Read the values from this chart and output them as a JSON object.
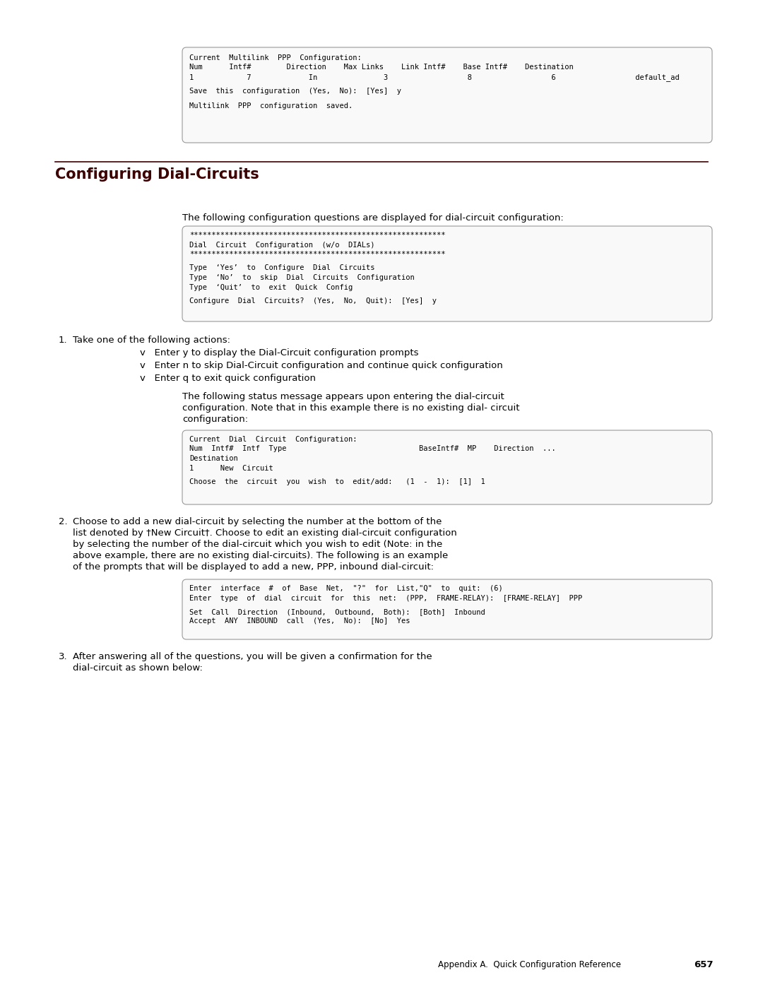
{
  "bg_color": "#ffffff",
  "text_color": "#000000",
  "title": "Configuring Dial-Circuits",
  "title_color": "#3d0000",
  "separator_color": "#3d0000",
  "footer_text": "Appendix A.  Quick Configuration Reference",
  "footer_page": "657",
  "box1_lines": [
    "Current  Multilink  PPP  Configuration:",
    "Num      Intf#        Direction    Max Links    Link Intf#    Base Intf#    Destination",
    "1            7             In               3                  8                  6                  default_ad",
    "",
    "Save  this  configuration  (Yes,  No):  [Yes]  y",
    "",
    "Multilink  PPP  configuration  saved."
  ],
  "intro_text": "The following configuration questions are displayed for dial-circuit configuration:",
  "box2_lines": [
    "**********************************************************",
    "Dial  Circuit  Configuration  (w/o  DIALs)",
    "**********************************************************",
    "",
    "Type  ‘Yes’  to  Configure  Dial  Circuits",
    "Type  ‘No’  to  skip  Dial  Circuits  Configuration",
    "Type  ‘Quit’  to  exit  Quick  Config",
    "",
    "Configure  Dial  Circuits?  (Yes,  No,  Quit):  [Yes]  y"
  ],
  "step1_label": "1.",
  "step1_header": "Take one of the following actions:",
  "step1_bullets": [
    "v   Enter y to display the Dial-Circuit configuration prompts",
    "v   Enter n to skip Dial-Circuit configuration and continue quick configuration",
    "v   Enter q to exit quick configuration"
  ],
  "step1_para": "The following status message appears upon entering the dial-circuit\nconfiguration. Note that in this example there is no existing dial- circuit\nconfiguration:",
  "box3_lines": [
    "Current  Dial  Circuit  Configuration:",
    "Num  Intf#  Intf  Type                              BaseIntf#  MP    Direction  ...",
    "Destination",
    "1      New  Circuit",
    "",
    "Choose  the  circuit  you  wish  to  edit/add:   (1  -  1):  [1]  1"
  ],
  "step2_label": "2.",
  "step2_line1": "Choose to add a new dial-circuit by selecting the number at the bottom of the",
  "step2_text": "list denoted by †New Circuit†. Choose to edit an existing dial-circuit configuration\nby selecting the number of the dial-circuit which you wish to edit (Note: in the\nabove example, there are no existing dial-circuits). The following is an example\nof the prompts that will be displayed to add a new, PPP, inbound dial-circuit:",
  "box4_lines": [
    "Enter  interface  #  of  Base  Net,  \"?\"  for  List,\"Q\"  to  quit:  (6)",
    "Enter  type  of  dial  circuit  for  this  net:  (PPP,  FRAME-RELAY):  [FRAME-RELAY]  PPP",
    "",
    "Set  Call  Direction  (Inbound,  Outbound,  Both):  [Both]  Inbound",
    "Accept  ANY  INBOUND  call  (Yes,  No):  [No]  Yes"
  ],
  "step3_label": "3.",
  "step3_line1": "After answering all of the questions, you will be given a confirmation for the",
  "step3_text": "dial-circuit as shown below:"
}
